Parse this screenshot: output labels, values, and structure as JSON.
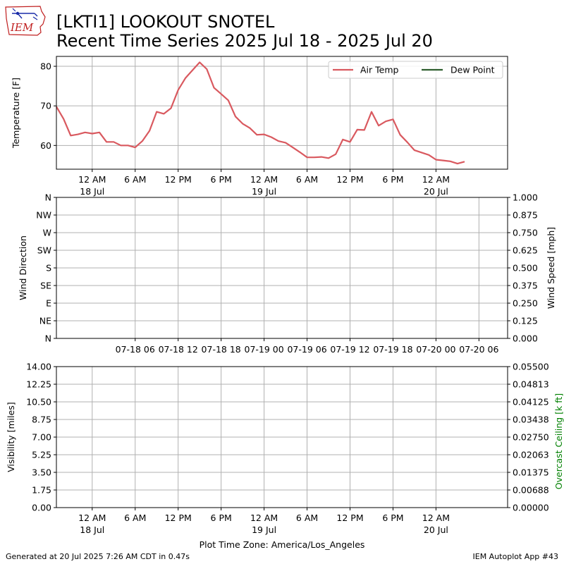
{
  "header": {
    "logo_text": "IEM",
    "title_line1": "[LKTI1] LOOKOUT SNOTEL",
    "title_line2": "Recent Time Series 2025 Jul 18 - 2025 Jul 20"
  },
  "footer": {
    "generated": "Generated at 20 Jul 2025 7:26 AM CDT in 0.47s",
    "app": "IEM Autoplot App #43"
  },
  "colors": {
    "air_temp": "#d9595f",
    "dew_point": "#2e5e2e",
    "grid": "#b0b0b0",
    "ceiling_label": "#008000"
  },
  "chart_data": [
    {
      "type": "line",
      "ylabel": "Temperature [F]",
      "ylim": [
        54,
        82.5
      ],
      "yticks": [
        60,
        70,
        80
      ],
      "grid": true,
      "legend_position": "top-right",
      "xtick_labels": [
        {
          "time": "07-18 00",
          "line1": "12 AM",
          "line2": "18 Jul"
        },
        {
          "time": "07-18 06",
          "line1": "6 AM",
          "line2": ""
        },
        {
          "time": "07-18 12",
          "line1": "12 PM",
          "line2": ""
        },
        {
          "time": "07-18 18",
          "line1": "6 PM",
          "line2": ""
        },
        {
          "time": "07-19 00",
          "line1": "12 AM",
          "line2": "19 Jul"
        },
        {
          "time": "07-19 06",
          "line1": "6 AM",
          "line2": ""
        },
        {
          "time": "07-19 12",
          "line1": "12 PM",
          "line2": ""
        },
        {
          "time": "07-19 18",
          "line1": "6 PM",
          "line2": ""
        },
        {
          "time": "07-20 00",
          "line1": "12 AM",
          "line2": "20 Jul"
        }
      ],
      "series": [
        {
          "name": "Air Temp",
          "x": [
            "07-17 19",
            "07-17 20",
            "07-17 21",
            "07-17 22",
            "07-17 23",
            "07-18 00",
            "07-18 01",
            "07-18 02",
            "07-18 03",
            "07-18 04",
            "07-18 05",
            "07-18 06",
            "07-18 07",
            "07-18 08",
            "07-18 09",
            "07-18 10",
            "07-18 11",
            "07-18 12",
            "07-18 13",
            "07-18 14",
            "07-18 15",
            "07-18 16",
            "07-18 17",
            "07-18 18",
            "07-18 19",
            "07-18 20",
            "07-18 21",
            "07-18 22",
            "07-18 23",
            "07-19 00",
            "07-19 01",
            "07-19 02",
            "07-19 03",
            "07-19 04",
            "07-19 05",
            "07-19 06",
            "07-19 07",
            "07-19 08",
            "07-19 09",
            "07-19 10",
            "07-19 11",
            "07-19 12",
            "07-19 13",
            "07-19 14",
            "07-19 15",
            "07-19 16",
            "07-19 17",
            "07-19 18",
            "07-19 19",
            "07-19 20",
            "07-19 21",
            "07-19 22",
            "07-19 23",
            "07-20 00",
            "07-20 01",
            "07-20 02",
            "07-20 03",
            "07-20 04"
          ],
          "y": [
            69.8,
            66.7,
            62.5,
            62.8,
            63.3,
            63.0,
            63.3,
            60.9,
            60.9,
            60.0,
            60.0,
            59.5,
            61.1,
            63.7,
            68.5,
            68.0,
            69.4,
            74.0,
            77.0,
            79.0,
            81.0,
            79.3,
            74.6,
            73.0,
            71.4,
            67.3,
            65.5,
            64.4,
            62.7,
            62.8,
            62.1,
            61.1,
            60.7,
            59.5,
            58.3,
            57.0,
            57.0,
            57.1,
            56.8,
            57.8,
            61.5,
            60.9,
            64.0,
            63.9,
            68.5,
            65.0,
            66.1,
            66.6,
            62.7,
            60.8,
            58.8,
            58.2,
            57.6,
            56.4,
            56.2,
            56.0,
            55.4,
            55.9
          ]
        },
        {
          "name": "Dew Point",
          "x": [],
          "y": []
        }
      ]
    },
    {
      "type": "line",
      "ylabel": "Wind Direction",
      "ylabel_right": "Wind Speed [mph]",
      "yticks_left": [
        "N",
        "NE",
        "E",
        "SE",
        "S",
        "SW",
        "W",
        "NW",
        "N"
      ],
      "yticks_right": [
        "0.000",
        "0.125",
        "0.250",
        "0.375",
        "0.500",
        "0.625",
        "0.750",
        "0.875",
        "1.000"
      ],
      "ylim_right": [
        0,
        1
      ],
      "grid": true,
      "xtick_labels": [
        "07-18 06",
        "07-18 12",
        "07-18 18",
        "07-19 00",
        "07-19 06",
        "07-19 12",
        "07-19 18",
        "07-20 00",
        "07-20 06"
      ],
      "series": []
    },
    {
      "type": "line",
      "ylabel": "Visibility [miles]",
      "ylabel_right": "Overcast Ceiling [k ft]",
      "ylim": [
        0,
        14
      ],
      "ylim_right": [
        0,
        0.055
      ],
      "yticks_left": [
        "0.00",
        "1.75",
        "3.50",
        "5.25",
        "7.00",
        "8.75",
        "10.50",
        "12.25",
        "14.00"
      ],
      "yticks_right": [
        "0.00000",
        "0.00688",
        "0.01375",
        "0.02063",
        "0.02750",
        "0.03438",
        "0.04125",
        "0.04813",
        "0.05500"
      ],
      "xlabel": "Plot Time Zone: America/Los_Angeles",
      "grid": true,
      "series": []
    }
  ]
}
